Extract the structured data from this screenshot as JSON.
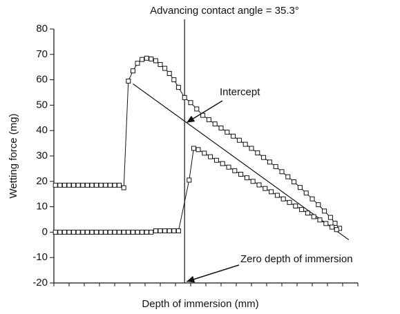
{
  "chart_data": {
    "type": "line",
    "title": "Advancing contact angle = 35.3°",
    "x_label": "Depth of immersion (mm)",
    "y_label": "Wetting force (mg)",
    "xlim": [
      0,
      20
    ],
    "xticks": [
      0,
      1,
      2,
      3,
      4,
      5,
      6,
      7,
      8,
      9,
      10,
      11,
      12,
      13,
      14,
      15,
      16,
      17,
      18,
      19,
      20
    ],
    "ylim": [
      -20,
      80
    ],
    "yticks": [
      -20,
      -10,
      0,
      10,
      20,
      30,
      40,
      50,
      60,
      70,
      80
    ],
    "color": "#111111",
    "series": [
      {
        "x": [
          0.1,
          0.4,
          0.7,
          1.0,
          1.3,
          1.6,
          1.9,
          2.2,
          2.5,
          2.8,
          3.1,
          3.4,
          3.7,
          4.0,
          4.3,
          4.6,
          4.9,
          5.2,
          5.5,
          5.8,
          6.1,
          6.4,
          6.7,
          7.0,
          7.3,
          7.6,
          7.9,
          8.2,
          8.6,
          9.0,
          9.4,
          9.8,
          10.2,
          10.6,
          11.0,
          11.4,
          11.8,
          12.2,
          12.6,
          13.0,
          13.4,
          13.8,
          14.2,
          14.6,
          15.0,
          15.4,
          15.8,
          16.2,
          16.6,
          17.0,
          17.4,
          17.8,
          18.2,
          18.5,
          18.8
        ],
        "values": [
          18.5,
          18.5,
          18.5,
          18.5,
          18.5,
          18.5,
          18.5,
          18.5,
          18.5,
          18.5,
          18.5,
          18.5,
          18.5,
          18.5,
          18.5,
          17.5,
          59.5,
          63.5,
          66.5,
          68,
          68.5,
          68.2,
          67.5,
          66,
          64.5,
          62.5,
          60,
          57,
          53,
          51,
          48.5,
          46,
          44.3,
          42.6,
          41,
          39.4,
          37.8,
          36.2,
          34.6,
          33,
          31.2,
          29.4,
          27.6,
          25.8,
          23.8,
          21.8,
          19.8,
          17.6,
          15.4,
          13.1,
          10.8,
          8.3,
          5.8,
          3.5,
          1.5
        ]
      },
      {
        "x": [
          0.1,
          0.4,
          0.7,
          1.0,
          1.3,
          1.6,
          1.9,
          2.2,
          2.5,
          2.8,
          3.1,
          3.4,
          3.7,
          4.0,
          4.3,
          4.6,
          4.9,
          5.2,
          5.5,
          5.8,
          6.1,
          6.4,
          6.7,
          7.0,
          7.3,
          7.6,
          7.9,
          8.2,
          8.9,
          9.2,
          9.5,
          9.9,
          10.3,
          10.7,
          11.1,
          11.5,
          11.9,
          12.3,
          12.7,
          13.1,
          13.5,
          13.9,
          14.3,
          14.7,
          15.1,
          15.5,
          15.9,
          16.3,
          16.7,
          17.1,
          17.5,
          17.9,
          18.3,
          18.6
        ],
        "values": [
          0,
          0,
          0,
          0,
          0,
          0,
          0,
          0,
          0,
          0,
          0,
          0,
          0,
          0,
          0,
          0,
          0,
          0,
          0,
          0,
          0,
          0,
          0.5,
          0.5,
          0.5,
          0.5,
          0.5,
          0.5,
          20.5,
          33,
          32.5,
          31.1,
          29.7,
          28.3,
          27.0,
          25.6,
          24.2,
          22.8,
          21.4,
          20.0,
          18.6,
          17.2,
          15.9,
          14.5,
          13.1,
          11.7,
          10.3,
          8.9,
          7.5,
          6.1,
          4.8,
          3.4,
          2.0,
          1.0
        ]
      }
    ],
    "fit_line": {
      "x": [
        5.2,
        19.4
      ],
      "y": [
        58.4,
        -3.0
      ]
    },
    "zero_depth_x": 8.6,
    "annotations": [
      {
        "text": "Intercept"
      },
      {
        "text": "Zero depth of immersion"
      }
    ]
  }
}
